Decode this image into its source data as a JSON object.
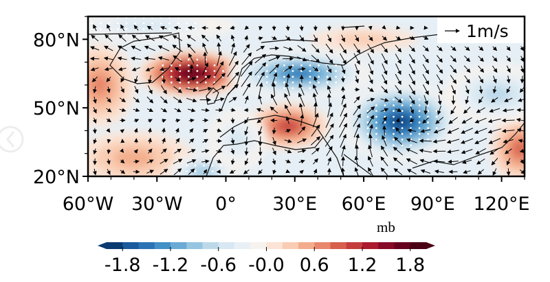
{
  "chart_data": {
    "type": "heatmap",
    "subtype": "filled-contour map with wind vectors and significance stippling",
    "x_ticks": [
      "60°W",
      "30°W",
      "0°",
      "30°E",
      "60°E",
      "90°E",
      "120°E"
    ],
    "x_tick_values": [
      -60,
      -30,
      0,
      30,
      60,
      90,
      120
    ],
    "y_ticks": [
      "80°N",
      "50°N",
      "20°N"
    ],
    "y_tick_values": [
      80,
      50,
      20
    ],
    "lon_range": [
      -60,
      130
    ],
    "lat_range": [
      20,
      90
    ],
    "colorbar": {
      "unit": "mb",
      "ticks": [
        "-1.8",
        "-1.2",
        "-0.6",
        "-0.0",
        "0.6",
        "1.2",
        "1.8"
      ],
      "tick_values": [
        -1.8,
        -1.2,
        -0.6,
        0.0,
        0.6,
        1.2,
        1.8
      ],
      "range": [
        -2.0,
        2.0
      ],
      "step": 0.2,
      "extend": "both",
      "colormap": "RdBu_r",
      "colors": [
        "#0a3a70",
        "#1b5a9c",
        "#2c72b4",
        "#4290c5",
        "#6aaad4",
        "#95c5e0",
        "#bcd9ea",
        "#d8e8f2",
        "#e9f0f5",
        "#f6f2ee",
        "#fbe4d6",
        "#f9cdb3",
        "#f3ad8c",
        "#e8876b",
        "#d6604d",
        "#c43c3c",
        "#ab1b2d",
        "#870a26",
        "#67001f",
        "#4a0014"
      ]
    },
    "reference_vector": "1m/s",
    "anomaly_centers": [
      {
        "lon": -15,
        "lat": 65,
        "value": 2.0,
        "rlon": 18,
        "rlat": 8,
        "significant": true
      },
      {
        "lon": 32,
        "lat": 65,
        "value": -1.6,
        "rlon": 24,
        "rlat": 8,
        "significant": true
      },
      {
        "lon": 76,
        "lat": 44,
        "value": -2.0,
        "rlon": 20,
        "rlat": 13,
        "significant": true
      },
      {
        "lon": 27,
        "lat": 42,
        "value": 1.2,
        "rlon": 14,
        "rlat": 8,
        "significant": false
      },
      {
        "lon": -55,
        "lat": 60,
        "value": 0.8,
        "rlon": 12,
        "rlat": 14,
        "significant": false
      },
      {
        "lon": -40,
        "lat": 28,
        "value": 0.6,
        "rlon": 20,
        "rlat": 9,
        "significant": false
      },
      {
        "lon": -10,
        "lat": 22,
        "value": -0.9,
        "rlon": 12,
        "rlat": 6,
        "significant": true
      },
      {
        "lon": 128,
        "lat": 32,
        "value": 0.9,
        "rlon": 10,
        "rlat": 11,
        "significant": false
      },
      {
        "lon": 118,
        "lat": 56,
        "value": -0.8,
        "rlon": 18,
        "rlat": 10,
        "significant": false
      },
      {
        "lon": -35,
        "lat": 86,
        "value": -0.6,
        "rlon": 30,
        "rlat": 5,
        "significant": true
      },
      {
        "lon": 60,
        "lat": 80,
        "value": 0.3,
        "rlon": 18,
        "rlat": 4,
        "significant": false
      },
      {
        "lon": 5,
        "lat": 36,
        "value": -0.5,
        "rlon": 10,
        "rlat": 10,
        "significant": false
      }
    ]
  },
  "ui": {
    "nav_prev_icon": "chevron-left-circle-icon"
  }
}
